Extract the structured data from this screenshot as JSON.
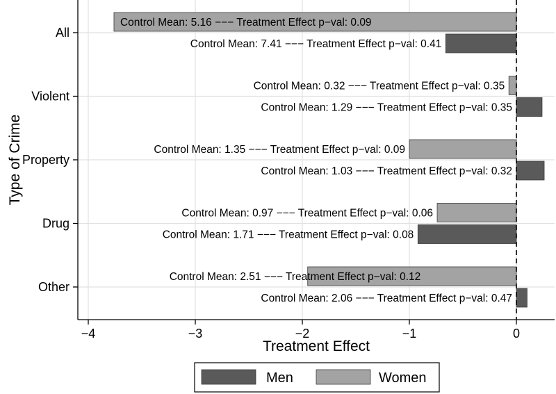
{
  "chart_data": {
    "type": "bar",
    "orientation": "horizontal",
    "title": "",
    "xlabel": "Treatment Effect",
    "ylabel": "Type of Crime",
    "xlim": [
      -4.1,
      0.35
    ],
    "xticks": [
      -4,
      -3,
      -2,
      -1,
      0
    ],
    "xtick_labels": [
      "−4",
      "−3",
      "−2",
      "−1",
      "0"
    ],
    "grid": true,
    "reference_line": 0,
    "categories": [
      "All",
      "Violent",
      "Property",
      "Drug",
      "Other"
    ],
    "colors": {
      "Men": "#5a5a5a",
      "Women": "#a3a3a3"
    },
    "label_separator": " −−− ",
    "series": [
      {
        "name": "Women",
        "values": [
          -3.76,
          -0.07,
          -1.0,
          -0.74,
          -1.95
        ],
        "labels": [
          "Control Mean: 5.16 −−− Treatment Effect p−val: 0.09",
          "Control Mean: 0.32 −−− Treatment Effect p−val: 0.35",
          "Control Mean: 1.35 −−− Treatment Effect p−val: 0.09",
          "Control Mean: 0.97 −−− Treatment Effect p−val: 0.06",
          "Control Mean: 2.51 −−− Treatment Effect p−val: 0.12"
        ]
      },
      {
        "name": "Men",
        "values": [
          -0.66,
          0.24,
          0.26,
          -0.92,
          0.1
        ],
        "labels": [
          "Control Mean: 7.41 −−− Treatment Effect p−val: 0.41",
          "Control Mean: 1.29 −−− Treatment Effect p−val: 0.35",
          "Control Mean: 1.03 −−− Treatment Effect p−val: 0.32",
          "Control Mean: 1.71 −−− Treatment Effect p−val: 0.08",
          "Control Mean: 2.06 −−− Treatment Effect p−val: 0.47"
        ]
      }
    ],
    "legend": {
      "position": "bottom",
      "entries": [
        "Men",
        "Women"
      ]
    }
  }
}
